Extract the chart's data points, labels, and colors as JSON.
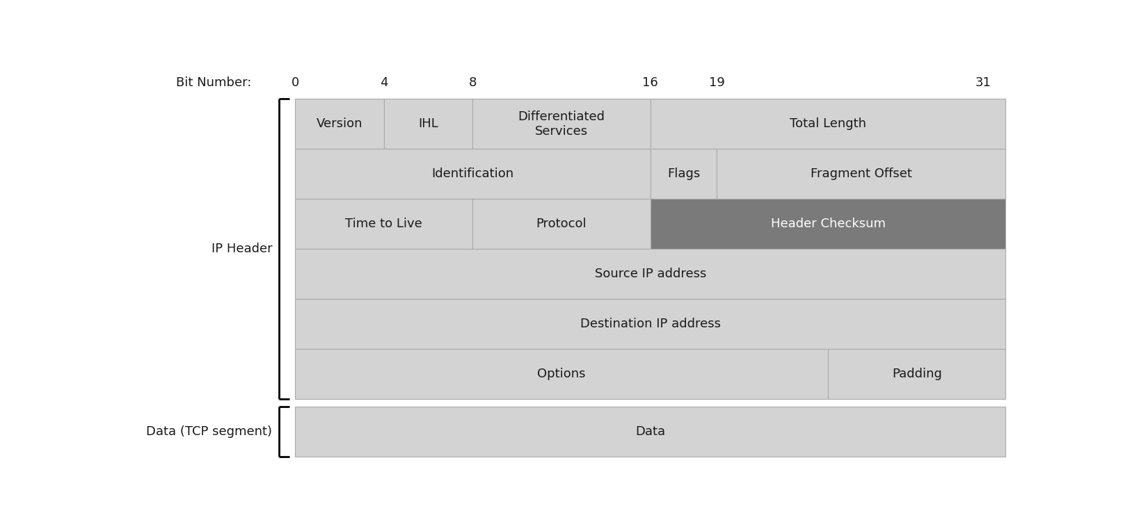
{
  "title": "Bit Number:",
  "bit_labels": [
    "0",
    "4",
    "8",
    "16",
    "19",
    "31"
  ],
  "bit_positions": [
    0,
    4,
    8,
    16,
    19,
    31
  ],
  "cell_color": "#d3d3d3",
  "dark_gray": "#7a7a7a",
  "white_text": "#ffffff",
  "black_text": "#1a1a1a",
  "edge_color": "#aaaaaa",
  "rows": [
    {
      "cells": [
        {
          "label": "Version",
          "start": 0,
          "end": 4,
          "color": "#d3d3d3",
          "text_color": "#1a1a1a"
        },
        {
          "label": "IHL",
          "start": 4,
          "end": 8,
          "color": "#d3d3d3",
          "text_color": "#1a1a1a"
        },
        {
          "label": "Differentiated\nServices",
          "start": 8,
          "end": 16,
          "color": "#d3d3d3",
          "text_color": "#1a1a1a"
        },
        {
          "label": "Total Length",
          "start": 16,
          "end": 32,
          "color": "#d3d3d3",
          "text_color": "#1a1a1a"
        }
      ]
    },
    {
      "cells": [
        {
          "label": "Identification",
          "start": 0,
          "end": 16,
          "color": "#d3d3d3",
          "text_color": "#1a1a1a"
        },
        {
          "label": "Flags",
          "start": 16,
          "end": 19,
          "color": "#d3d3d3",
          "text_color": "#1a1a1a"
        },
        {
          "label": "Fragment Offset",
          "start": 19,
          "end": 32,
          "color": "#d3d3d3",
          "text_color": "#1a1a1a"
        }
      ]
    },
    {
      "cells": [
        {
          "label": "Time to Live",
          "start": 0,
          "end": 8,
          "color": "#d3d3d3",
          "text_color": "#1a1a1a"
        },
        {
          "label": "Protocol",
          "start": 8,
          "end": 16,
          "color": "#d3d3d3",
          "text_color": "#1a1a1a"
        },
        {
          "label": "Header Checksum",
          "start": 16,
          "end": 32,
          "color": "#7a7a7a",
          "text_color": "#ffffff"
        }
      ]
    },
    {
      "cells": [
        {
          "label": "Source IP address",
          "start": 0,
          "end": 32,
          "color": "#d3d3d3",
          "text_color": "#1a1a1a"
        }
      ]
    },
    {
      "cells": [
        {
          "label": "Destination IP address",
          "start": 0,
          "end": 32,
          "color": "#d3d3d3",
          "text_color": "#1a1a1a"
        }
      ]
    },
    {
      "cells": [
        {
          "label": "Options",
          "start": 0,
          "end": 24,
          "color": "#d3d3d3",
          "text_color": "#1a1a1a"
        },
        {
          "label": "Padding",
          "start": 24,
          "end": 32,
          "color": "#d3d3d3",
          "text_color": "#1a1a1a"
        }
      ]
    }
  ],
  "data_row": {
    "cells": [
      {
        "label": "Data",
        "start": 0,
        "end": 32,
        "color": "#d3d3d3",
        "text_color": "#1a1a1a"
      }
    ]
  },
  "ip_header_label": "IP Header",
  "data_label": "Data (TCP segment)",
  "total_bits": 32,
  "fig_width": 16.27,
  "fig_height": 7.51,
  "fontsize": 13
}
